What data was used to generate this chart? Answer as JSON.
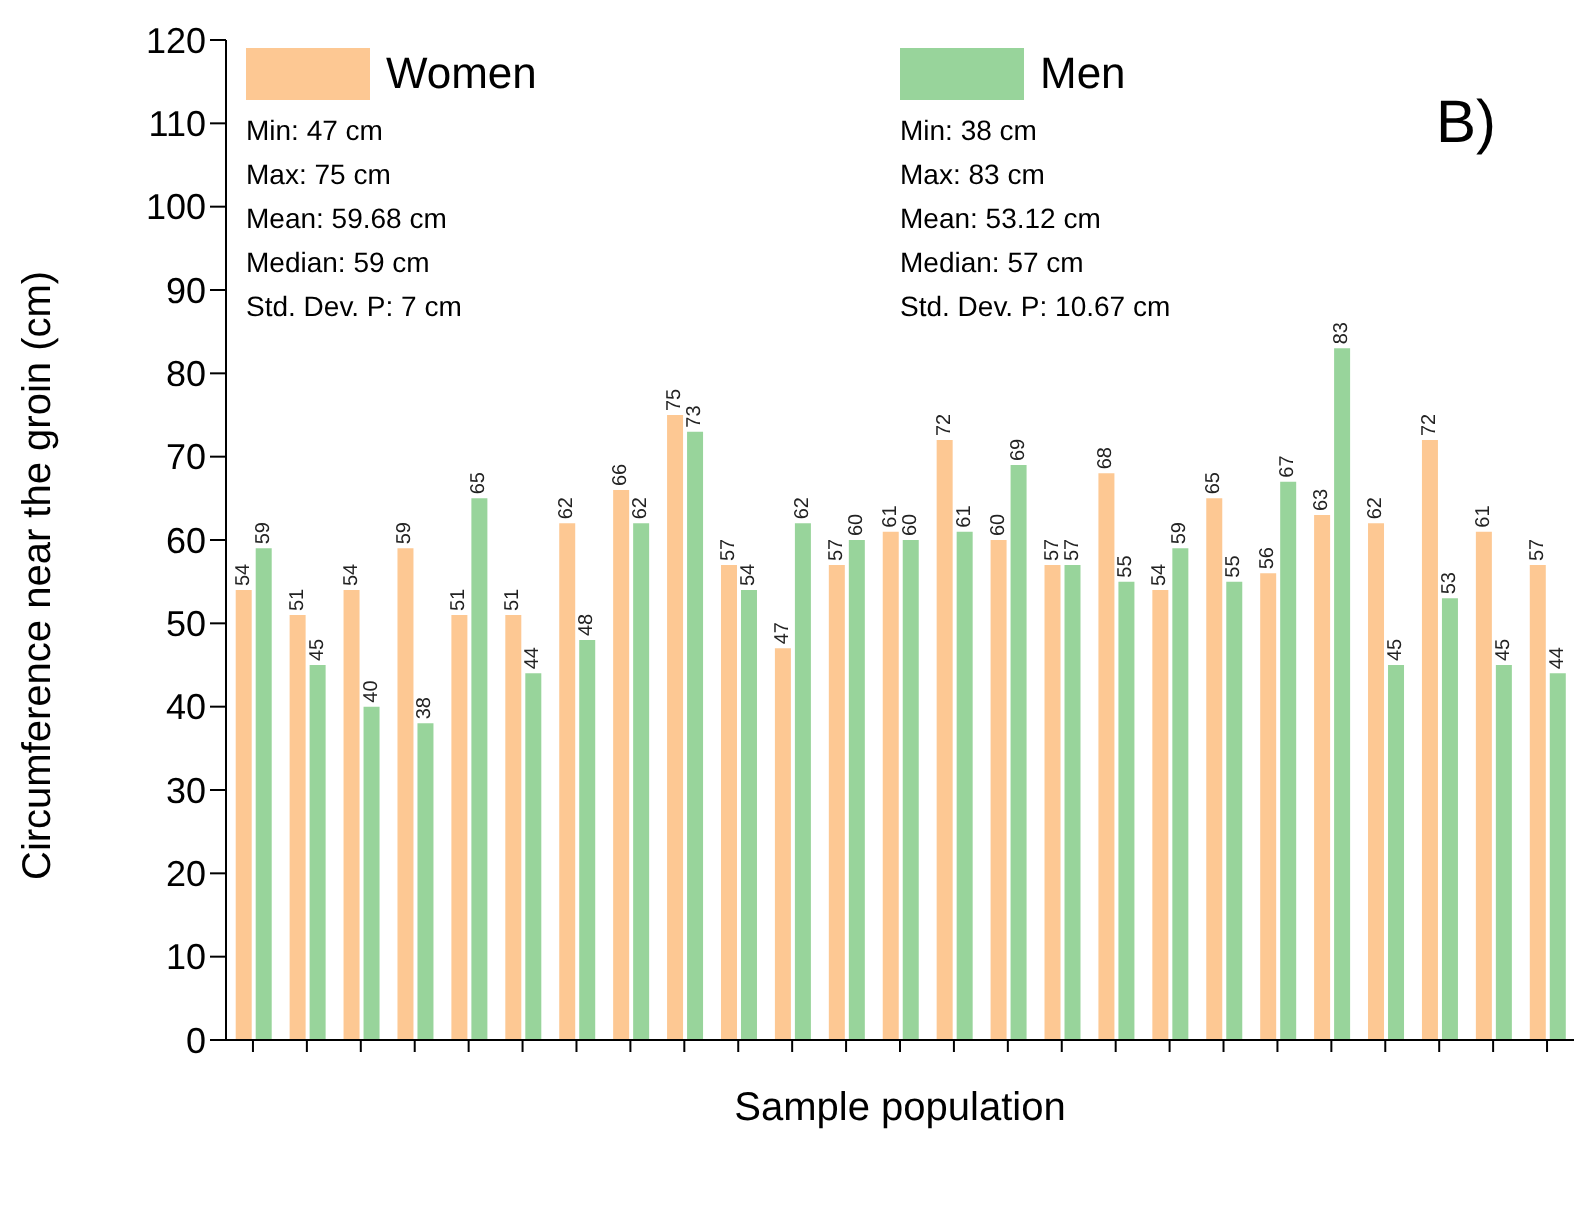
{
  "chart_data": {
    "type": "bar",
    "xlabel": "Sample population",
    "ylabel": "Circumference near the groin (cm)",
    "categories": [
      null,
      null,
      null,
      null,
      null,
      null,
      null,
      null,
      null,
      null,
      null,
      null,
      null,
      null,
      null,
      null,
      null,
      null,
      null,
      null,
      null,
      null,
      null,
      null,
      null
    ],
    "series": [
      {
        "name": "Women",
        "color": "#fdc893",
        "values": [
          54,
          51,
          54,
          59,
          51,
          51,
          62,
          66,
          75,
          57,
          47,
          57,
          61,
          72,
          60,
          57,
          68,
          54,
          65,
          56,
          63,
          62,
          72,
          61,
          57
        ]
      },
      {
        "name": "Men",
        "color": "#98d49b",
        "values": [
          59,
          45,
          40,
          38,
          65,
          44,
          48,
          62,
          73,
          54,
          62,
          60,
          60,
          61,
          69,
          57,
          55,
          59,
          55,
          67,
          83,
          45,
          53,
          45,
          44
        ]
      }
    ],
    "ylim": [
      0,
      120
    ],
    "yticks": [
      0,
      10,
      20,
      30,
      40,
      50,
      60,
      70,
      80,
      90,
      100,
      110,
      120
    ],
    "grid": false,
    "legend": "top",
    "data_labels": true,
    "annotations": [
      "Min: 47 cm\nMax: 75 cm\nMean: 59.68 cm\nMedian: 59 cm\nStd. Dev. P: 7 cm",
      "Min: 38 cm\nMax: 83 cm\nMean: 53.12 cm\nMedian: 57 cm\nStd. Dev. P: 10.67 cm",
      "B)"
    ]
  }
}
